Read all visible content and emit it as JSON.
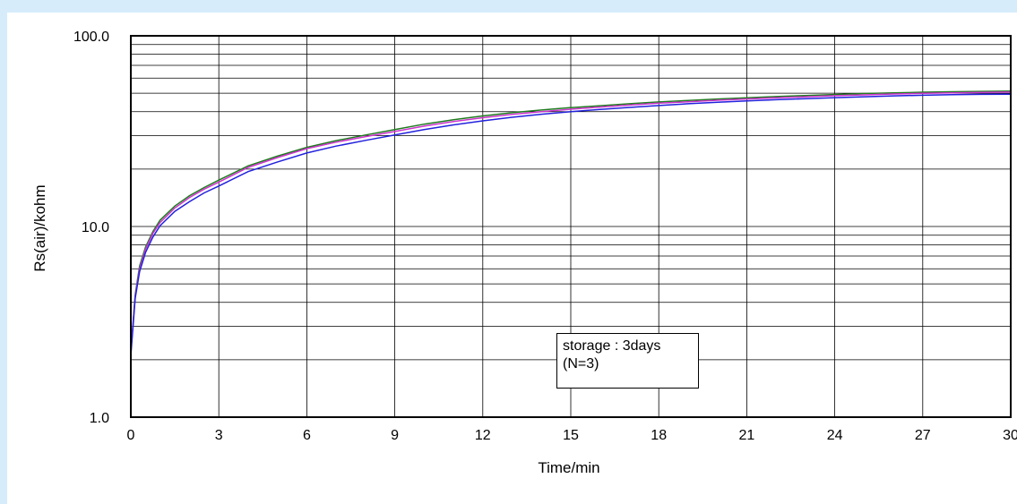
{
  "chart_data": {
    "type": "line",
    "title": "",
    "xlabel": "Time/min",
    "ylabel": "Rs(air)/kohm",
    "yscale": "log",
    "xlim": [
      0,
      30
    ],
    "ylim": [
      1.0,
      100.0
    ],
    "x_ticks": [
      "0",
      "3",
      "6",
      "9",
      "12",
      "15",
      "18",
      "21",
      "24",
      "27",
      "30"
    ],
    "y_ticks": [
      "1.0",
      "10.0",
      "100.0"
    ],
    "grid": true,
    "annotation": [
      "storage : 3days",
      "(N=3)"
    ],
    "series": [
      {
        "color": "#1f7a1f",
        "x": [
          0,
          0.15,
          0.3,
          0.5,
          0.75,
          1,
          1.5,
          2,
          2.5,
          3,
          4,
          5,
          6,
          7,
          8,
          9,
          10,
          11,
          12,
          13,
          14,
          15,
          16,
          17,
          18,
          19,
          20,
          21,
          22,
          23,
          24,
          25,
          26,
          27,
          28,
          29,
          30
        ],
        "values": [
          2.2,
          4.4,
          6.2,
          7.8,
          9.4,
          10.8,
          12.8,
          14.5,
          16.0,
          17.5,
          20.8,
          23.4,
          26.0,
          28.2,
          30.2,
          32.2,
          34.4,
          36.3,
          38.0,
          39.5,
          40.8,
          42.0,
          43.0,
          44.0,
          45.0,
          45.8,
          46.6,
          47.3,
          48.0,
          48.6,
          49.2,
          49.8,
          50.2,
          50.6,
          50.9,
          51.1,
          51.3
        ]
      },
      {
        "color": "#cc33cc",
        "x": [
          0,
          0.15,
          0.3,
          0.5,
          0.75,
          1,
          1.5,
          2,
          2.5,
          3,
          4,
          5,
          6,
          7,
          8,
          9,
          10,
          11,
          12,
          13,
          14,
          15,
          16,
          17,
          18,
          19,
          20,
          21,
          22,
          23,
          24,
          25,
          26,
          27,
          28,
          29,
          30
        ],
        "values": [
          2.2,
          4.3,
          6.0,
          7.6,
          9.2,
          10.5,
          12.5,
          14.2,
          15.7,
          17.1,
          20.4,
          23.0,
          25.6,
          27.7,
          29.6,
          31.5,
          33.6,
          35.5,
          37.2,
          38.7,
          40.0,
          41.2,
          42.3,
          43.3,
          44.3,
          45.1,
          45.9,
          46.6,
          47.3,
          47.9,
          48.5,
          49.0,
          49.5,
          49.9,
          50.2,
          50.5,
          50.7
        ]
      },
      {
        "color": "#2222dd",
        "x": [
          0,
          0.15,
          0.3,
          0.5,
          0.75,
          1,
          1.5,
          2,
          2.5,
          3,
          4,
          5,
          6,
          7,
          8,
          9,
          10,
          11,
          12,
          13,
          14,
          15,
          16,
          17,
          18,
          19,
          20,
          21,
          22,
          23,
          24,
          25,
          26,
          27,
          28,
          29,
          30
        ],
        "values": [
          2.1,
          4.2,
          5.8,
          7.3,
          8.8,
          10.1,
          12.0,
          13.5,
          15.0,
          16.3,
          19.4,
          21.8,
          24.3,
          26.4,
          28.3,
          30.2,
          32.2,
          34.1,
          35.8,
          37.4,
          38.8,
          40.0,
          41.1,
          42.1,
          43.1,
          44.0,
          44.8,
          45.5,
          46.2,
          46.8,
          47.4,
          47.9,
          48.4,
          48.8,
          49.1,
          49.3,
          49.4
        ]
      }
    ]
  }
}
